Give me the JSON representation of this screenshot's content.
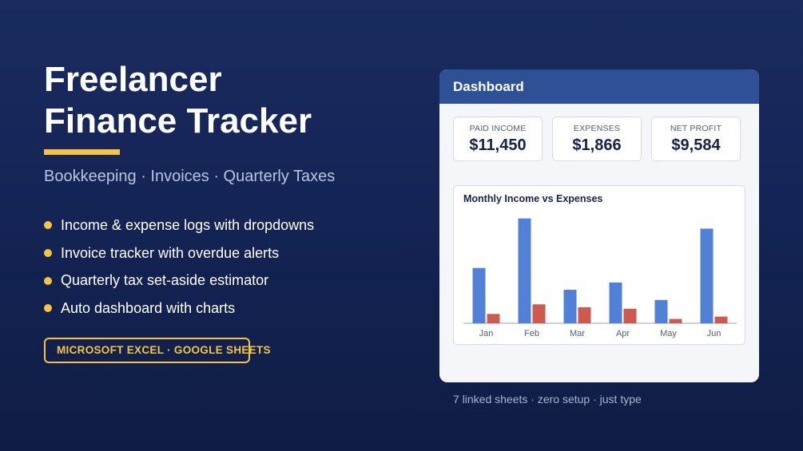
{
  "hero": {
    "title_line1": "Freelancer",
    "title_line2": "Finance Tracker",
    "subtitle": "Bookkeeping · Invoices · Quarterly Taxes",
    "features": [
      "Income & expense logs with dropdowns",
      "Invoice tracker with overdue alerts",
      "Quarterly tax set-aside estimator",
      "Auto dashboard with charts"
    ],
    "platforms": "MICROSOFT EXCEL  ·  GOOGLE SHEETS"
  },
  "dashboard": {
    "title": "Dashboard",
    "kpis": [
      {
        "label": "PAID INCOME",
        "value": "$11,450"
      },
      {
        "label": "EXPENSES",
        "value": "$1,866"
      },
      {
        "label": "NET PROFIT",
        "value": "$9,584"
      }
    ]
  },
  "chart_data": {
    "type": "bar",
    "title": "Monthly Income vs Expenses",
    "categories": [
      "Jan",
      "Feb",
      "Mar",
      "Apr",
      "May",
      "Jun"
    ],
    "series": [
      {
        "values": [
          1900,
          3600,
          1150,
          1400,
          800,
          3250
        ]
      },
      {
        "values": [
          320,
          650,
          550,
          500,
          150,
          230
        ]
      }
    ],
    "ylim": [
      0,
      3700
    ],
    "grid": false,
    "colors": [
      "#5081d6",
      "#cc5a4e"
    ]
  },
  "footer": {
    "note": "7 linked sheets · zero setup · just type"
  },
  "colors": {
    "accent": "#f5c542",
    "header_blue": "#2e5196",
    "background": "#142455"
  }
}
